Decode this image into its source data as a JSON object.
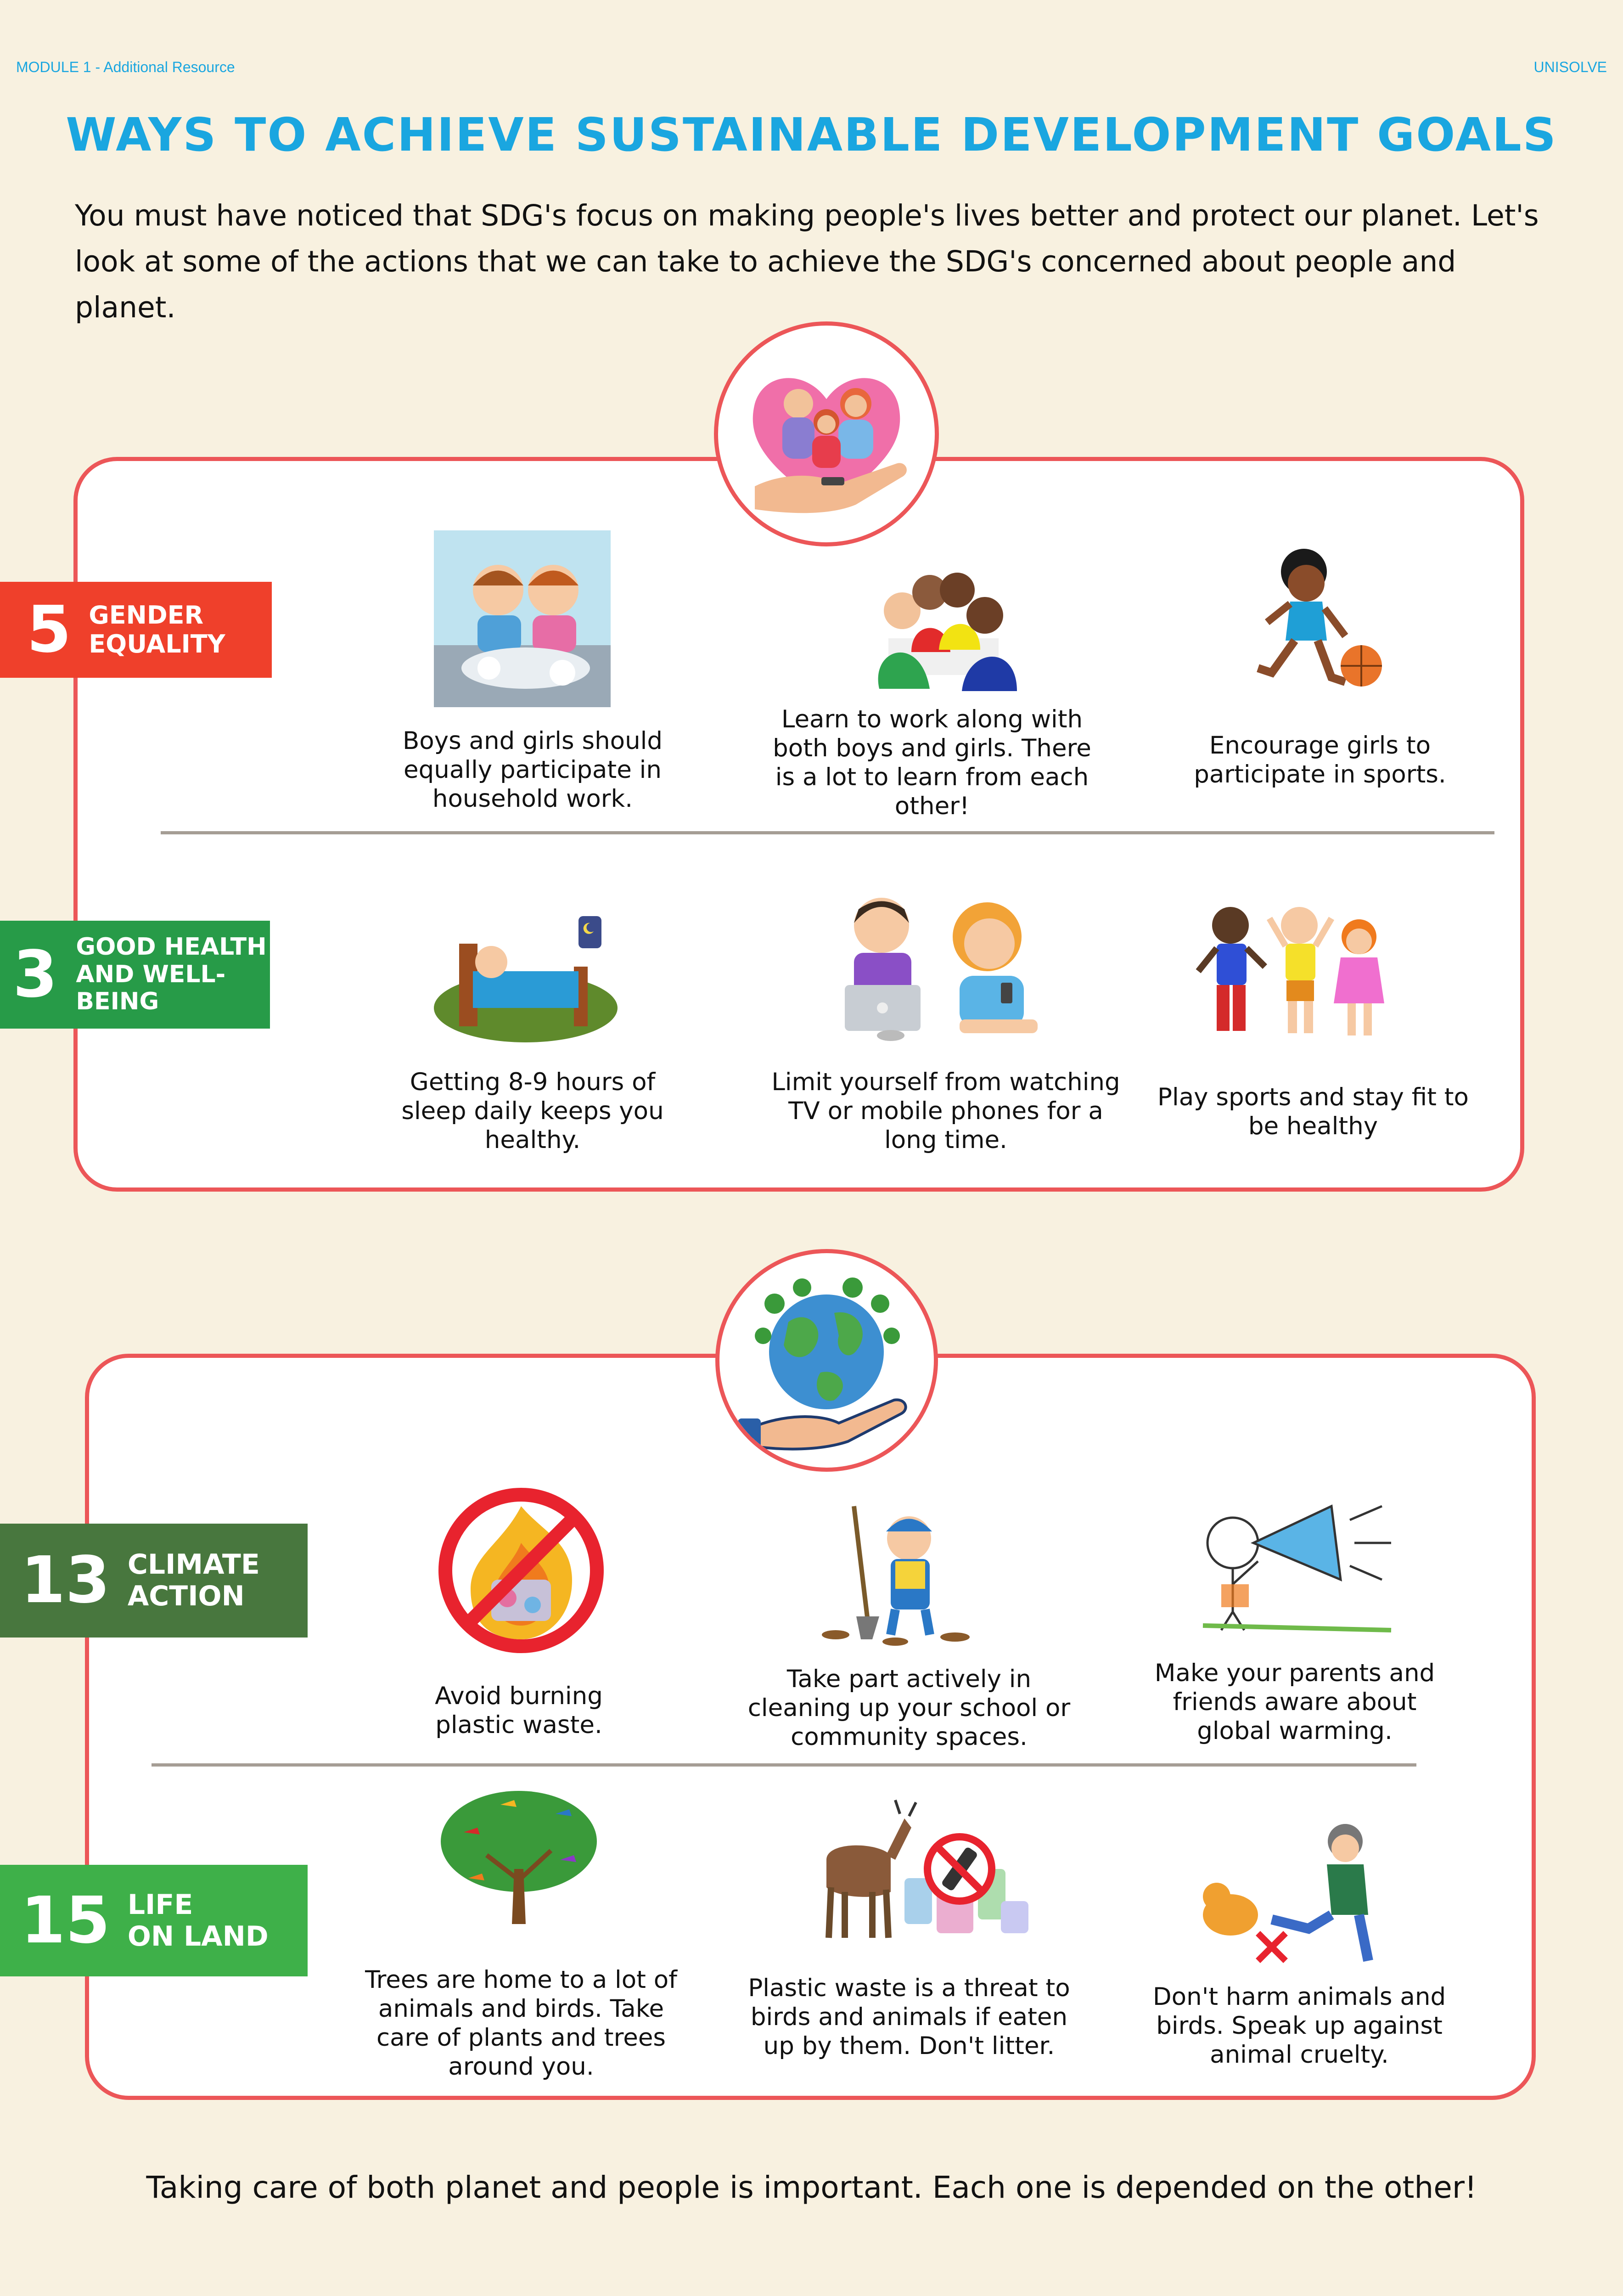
{
  "header": {
    "left": "MODULE 1 - Additional Resource",
    "right": "UNISOLVE"
  },
  "title": "WAYS TO ACHIEVE SUSTAINABLE DEVELOPMENT GOALS",
  "intro": "You must have noticed that SDG's focus on making people's lives better and protect our planet. Let's look at some of the actions that we can take to achieve the SDG's concerned about people and planet.",
  "sections": [
    {
      "icon": "family-heart-hand-icon",
      "goals": [
        {
          "number": "5",
          "label_line1": "GENDER",
          "label_line2": "EQUALITY",
          "color": "#ef402b",
          "items": [
            "Boys and girls should equally participate in household work.",
            "Learn to work along with both boys and girls. There is a lot to learn from each other!",
            "Encourage girls to participate in sports."
          ]
        },
        {
          "number": "3",
          "label_line1": "GOOD HEALTH",
          "label_line2": "AND WELL-BEING",
          "color": "#279b48",
          "items": [
            "Getting 8-9 hours of sleep daily keeps you healthy.",
            "Limit yourself from watching TV or mobile phones for a long time.",
            "Play sports and stay fit to be healthy"
          ]
        }
      ]
    },
    {
      "icon": "earth-hand-icon",
      "goals": [
        {
          "number": "13",
          "label_line1": "CLIMATE",
          "label_line2": "ACTION",
          "color": "#48773e",
          "items": [
            "Avoid burning plastic waste.",
            "Take part actively in cleaning up your school or community spaces.",
            "Make your parents and friends aware about global warming."
          ]
        },
        {
          "number": "15",
          "label_line1": "LIFE",
          "label_line2": "ON LAND",
          "color": "#3eb049",
          "items": [
            "Trees are home to a lot of animals and birds. Take care of plants and trees around you.",
            "Plastic waste is a threat to birds and animals if eaten up by them. Don't litter.",
            "Don't harm animals and birds. Speak up against animal cruelty."
          ]
        }
      ]
    }
  ],
  "footer": "Taking care of both planet and people is important. Each one is depended on the other!"
}
